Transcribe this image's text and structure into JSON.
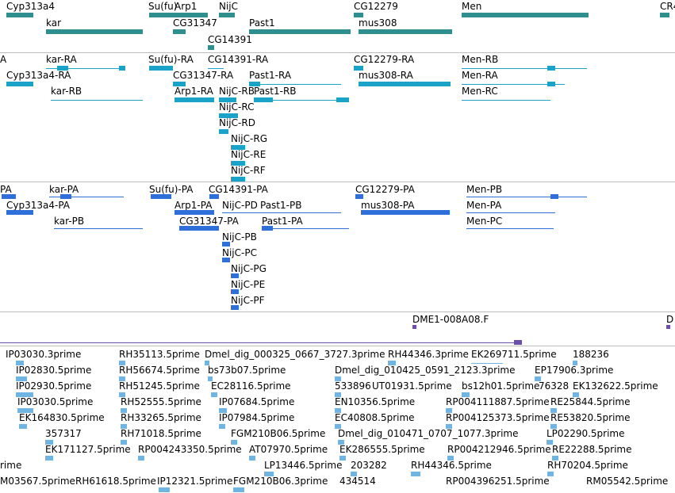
{
  "colors": {
    "gene_track": "#2f8f8f",
    "mrna_track": "#1aa3c9",
    "protein_track": "#2e6fd9",
    "est_track": "#6fb5e3",
    "other_track": "#6b4fa8",
    "separator": "#bdbdbd"
  },
  "tracks": {
    "gene": {
      "color": "gene_track",
      "labels": [
        "Cyp313a4",
        "Su(fu)",
        "Arp1",
        "NijC",
        "CG12279",
        "Men",
        "CR4",
        "kar",
        "CG31347",
        "Past1",
        "mus308",
        "CG14391"
      ]
    },
    "mrna": {
      "color": "mrna_track",
      "labels": [
        "A",
        "kar-RA",
        "Su(fu)-RA",
        "CG14391-RA",
        "CG12279-RA",
        "Men-RB",
        "Cyp313a4-RA",
        "CG31347-RA",
        "Past1-RA",
        "mus308-RA",
        "Men-RA",
        "kar-RB",
        "Arp1-RA",
        "NijC-RB",
        "Past1-RB",
        "Men-RC",
        "NijC-RC",
        "NijC-RD",
        "NijC-RG",
        "NijC-RE",
        "NijC-RF"
      ]
    },
    "protein": {
      "color": "protein_track",
      "labels": [
        "PA",
        "kar-PA",
        "Su(fu)-PA",
        "CG14391-PA",
        "CG12279-PA",
        "Men-PB",
        "Cyp313a4-PA",
        "Arp1-PA",
        "NijC-PD",
        "Past1-PB",
        "mus308-PA",
        "Men-PA",
        "kar-PB",
        "CG31347-PA",
        "Past1-PA",
        "Men-PC",
        "NijC-PB",
        "NijC-PC",
        "NijC-PG",
        "NijC-PE",
        "NijC-PF"
      ]
    },
    "clone": {
      "color": "other_track",
      "labels": [
        "DME1-008A08.F",
        "D"
      ]
    },
    "est": {
      "color": "est_track",
      "labels": [
        "IP03030.3prime",
        "RH35113.5prime",
        "Dmel_dig_000325_0667_3727.3prime",
        "RH44346.3prime",
        "EK269711.5prime",
        "188236",
        "IP02830.5prime",
        "RH56674.5prime",
        "bs73b07.5prime",
        "Dmel_dig_010425_0591_2123.3prime",
        "EP17906.3prime",
        "IP02930.5prime",
        "RH51245.5prime",
        "EC28116.5prime",
        "533896",
        "UT01931.5prime",
        "bs12h01.5prime",
        "76328",
        "EK132622.5prime",
        "IP03030.5prime",
        "RH52555.5prime",
        "IP07684.5prime",
        "EN10356.5prime",
        "RP004111887.5prime",
        "RE25844.5prime",
        "EK164830.5prime",
        "RH33265.5prime",
        "IP07984.5prime",
        "EC40808.5prime",
        "RP004125373.5prime",
        "RE53820.5prime",
        "357317",
        "RH71018.5prime",
        "FGM210B06.5prime",
        "Dmel_dig_010471_0707_1077.3prime",
        "LP02290.5prime",
        "EK171127.5prime",
        "RP004243350.5prime",
        "AT07970.5prime",
        "EK286555.5prime",
        "RP004212946.5prime",
        "RE22288.5prime",
        "rime",
        "LP13446.5prime",
        "203282",
        "RH44346.5prime",
        "RH70204.5prime",
        "M03567.5prime",
        "RH61618.5prime",
        "IP12321.5prime",
        "FGM210B06.3prime",
        "434514",
        "RP004396251.5prime",
        "RM05542.5prime"
      ]
    }
  }
}
